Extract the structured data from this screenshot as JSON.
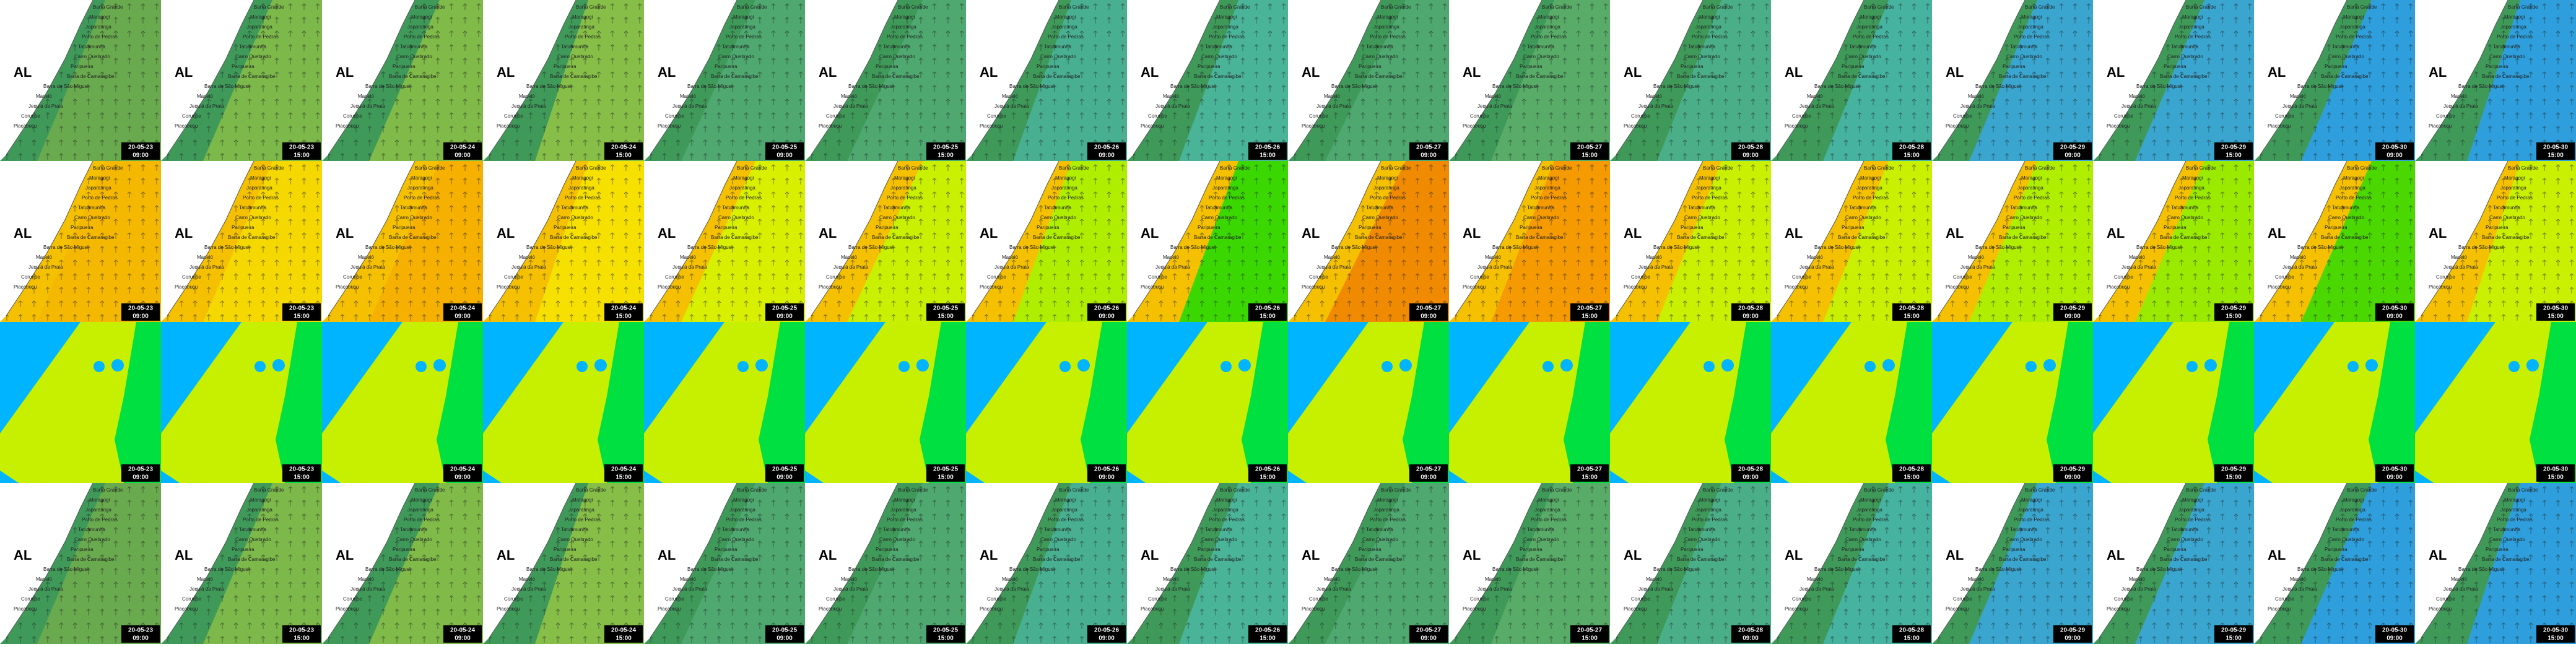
{
  "state_label": "AL",
  "places": [
    "Barra Grande",
    "Maragogi",
    "Japaratinga",
    "Porto de Pedras",
    "Tatuamunha",
    "Carro Quebrado",
    "Paripueira",
    "Barra de Camaragibe",
    "Barra de São Miguel",
    "Maceió",
    "Jequiá da Praia",
    "Coruripe",
    "Piaçabuçu"
  ],
  "frames": [
    {
      "date": "20-05-23",
      "time": "09:00"
    },
    {
      "date": "20-05-23",
      "time": "15:00"
    },
    {
      "date": "20-05-24",
      "time": "09:00"
    },
    {
      "date": "20-05-24",
      "time": "15:00"
    },
    {
      "date": "20-05-25",
      "time": "09:00"
    },
    {
      "date": "20-05-25",
      "time": "15:00"
    },
    {
      "date": "20-05-26",
      "time": "09:00"
    },
    {
      "date": "20-05-26",
      "time": "15:00"
    },
    {
      "date": "20-05-27",
      "time": "09:00"
    },
    {
      "date": "20-05-27",
      "time": "15:00"
    },
    {
      "date": "20-05-28",
      "time": "09:00"
    },
    {
      "date": "20-05-28",
      "time": "15:00"
    },
    {
      "date": "20-05-29",
      "time": "09:00"
    },
    {
      "date": "20-05-29",
      "time": "15:00"
    },
    {
      "date": "20-05-30",
      "time": "09:00"
    },
    {
      "date": "20-05-30",
      "time": "15:00"
    }
  ],
  "rows": [
    {
      "labels": true,
      "base": "#3f9a5a",
      "colors": [
        "#6aaa4e",
        "#7cb84a",
        "#80ba48",
        "#86be48",
        "#4ea870",
        "#4ea870",
        "#48b090",
        "#4ab499",
        "#4ea870",
        "#58ac68",
        "#4aaf88",
        "#46b2a0",
        "#3aa6d0",
        "#3aa6d0",
        "#2e9fdc",
        "#2e9fdc"
      ]
    },
    {
      "labels": true,
      "base": "#f5c000",
      "colors": [
        "#f5b800",
        "#f5d800",
        "#f5b000",
        "#f5e000",
        "#d8f000",
        "#c8f000",
        "#b0ee00",
        "#3ad800",
        "#f08a00",
        "#f59a00",
        "#c8f000",
        "#c8f000",
        "#b0ee00",
        "#9aea00",
        "#4ad800",
        "#c8f000"
      ]
    },
    {
      "labels": false,
      "base": "#00b4ff",
      "colors": [
        "#c6f000",
        "#c6f000",
        "#c6f000",
        "#c6f000",
        "#c6f000",
        "#c6f000",
        "#c6f000",
        "#c6f000",
        "#c6f000",
        "#c6f000",
        "#c6f000",
        "#c6f000",
        "#c6f000",
        "#c6f000",
        "#c6f000",
        "#c6f000"
      ]
    },
    {
      "labels": true,
      "base": "#3f9a5a",
      "colors": [
        "#6aaa4e",
        "#7cb84a",
        "#80ba48",
        "#86be48",
        "#4ea870",
        "#4ea870",
        "#48b090",
        "#4ab499",
        "#4ea870",
        "#58ac68",
        "#4aaf88",
        "#46b2a0",
        "#3aa6d0",
        "#3aa6d0",
        "#2e9fdc",
        "#2e9fdc"
      ]
    }
  ]
}
